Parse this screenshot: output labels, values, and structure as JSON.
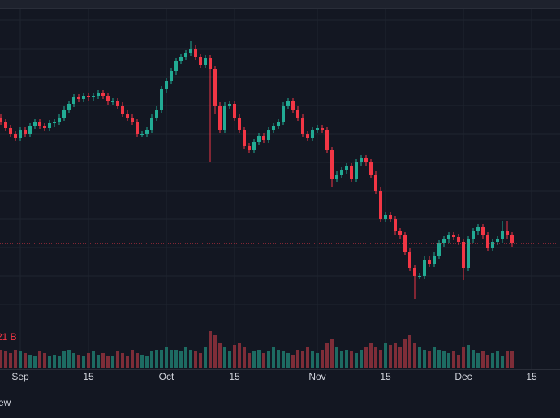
{
  "chart_data": {
    "type": "candlestick",
    "up_color": "#22ab94",
    "down_color": "#f23645",
    "volume_up_color": "#1d6b62",
    "volume_down_color": "#7e2d38",
    "price_line_color": "#f23645",
    "ylim": [
      0,
      400
    ],
    "vlim": [
      0,
      60
    ],
    "xticks": [
      {
        "value": 4,
        "label": "Sep"
      },
      {
        "value": 18,
        "label": "15"
      },
      {
        "value": 34,
        "label": "Oct"
      },
      {
        "value": 48,
        "label": "15"
      },
      {
        "value": 65,
        "label": "Nov"
      },
      {
        "value": 79,
        "label": "15"
      },
      {
        "value": 95,
        "label": "Dec"
      },
      {
        "value": 109,
        "label": "15"
      }
    ],
    "volume_label": "21 B",
    "open": [
      255,
      250,
      242,
      235,
      230,
      240,
      235,
      245,
      250,
      245,
      242,
      248,
      250,
      255,
      265,
      272,
      280,
      278,
      282,
      280,
      282,
      285,
      282,
      275,
      275,
      270,
      260,
      255,
      250,
      235,
      235,
      240,
      255,
      265,
      290,
      300,
      312,
      325,
      330,
      335,
      340,
      330,
      320,
      328,
      315,
      270,
      240,
      270,
      272,
      255,
      240,
      220,
      215,
      225,
      232,
      228,
      240,
      245,
      250,
      270,
      275,
      265,
      255,
      235,
      230,
      240,
      242,
      240,
      215,
      180,
      185,
      190,
      195,
      180,
      200,
      205,
      200,
      185,
      165,
      130,
      135,
      130,
      115,
      110,
      90,
      70,
      60,
      60,
      80,
      75,
      85,
      100,
      105,
      110,
      108,
      102,
      70,
      105,
      115,
      120,
      110,
      95,
      102,
      105,
      115,
      110
    ],
    "high": [
      259,
      254,
      246,
      239,
      244,
      244,
      249,
      254,
      254,
      249,
      252,
      254,
      259,
      269,
      276,
      284,
      284,
      286,
      286,
      286,
      289,
      289,
      286,
      279,
      279,
      274,
      264,
      259,
      254,
      239,
      244,
      259,
      269,
      294,
      304,
      316,
      329,
      334,
      339,
      350,
      344,
      334,
      332,
      332,
      319,
      274,
      274,
      276,
      276,
      259,
      244,
      224,
      229,
      236,
      236,
      244,
      249,
      254,
      274,
      279,
      279,
      269,
      259,
      239,
      244,
      246,
      246,
      244,
      219,
      189,
      194,
      199,
      199,
      204,
      209,
      209,
      204,
      189,
      169,
      139,
      139,
      134,
      119,
      114,
      94,
      74,
      64,
      84,
      84,
      89,
      104,
      109,
      114,
      114,
      112,
      106,
      109,
      119,
      124,
      124,
      114,
      106,
      109,
      128,
      128,
      114
    ],
    "low": [
      246,
      238,
      231,
      226,
      226,
      231,
      231,
      241,
      241,
      238,
      238,
      244,
      246,
      251,
      261,
      268,
      274,
      274,
      276,
      276,
      278,
      278,
      271,
      271,
      266,
      256,
      251,
      246,
      231,
      231,
      231,
      236,
      251,
      261,
      286,
      296,
      308,
      321,
      326,
      331,
      326,
      316,
      316,
      200,
      260,
      236,
      236,
      266,
      251,
      236,
      216,
      211,
      211,
      221,
      224,
      224,
      236,
      241,
      246,
      266,
      261,
      251,
      231,
      226,
      226,
      236,
      236,
      211,
      170,
      176,
      181,
      186,
      176,
      176,
      196,
      196,
      181,
      161,
      126,
      126,
      126,
      111,
      106,
      86,
      66,
      32,
      56,
      56,
      71,
      71,
      81,
      96,
      101,
      104,
      98,
      55,
      66,
      101,
      111,
      106,
      91,
      91,
      98,
      101,
      106,
      96
    ],
    "close": [
      250,
      242,
      235,
      230,
      240,
      235,
      245,
      250,
      245,
      242,
      248,
      250,
      255,
      265,
      272,
      280,
      278,
      282,
      280,
      282,
      285,
      282,
      275,
      275,
      270,
      260,
      255,
      250,
      235,
      235,
      240,
      255,
      265,
      290,
      300,
      312,
      325,
      330,
      335,
      340,
      330,
      320,
      328,
      315,
      270,
      240,
      270,
      272,
      255,
      240,
      220,
      215,
      225,
      232,
      228,
      240,
      245,
      250,
      270,
      275,
      265,
      255,
      235,
      230,
      240,
      242,
      240,
      215,
      180,
      185,
      190,
      195,
      180,
      200,
      205,
      200,
      185,
      165,
      130,
      135,
      130,
      115,
      110,
      90,
      70,
      60,
      60,
      80,
      75,
      85,
      100,
      105,
      110,
      108,
      102,
      70,
      105,
      115,
      120,
      110,
      95,
      102,
      105,
      115,
      110,
      100
    ],
    "volume": [
      22,
      20,
      18,
      22,
      20,
      18,
      16,
      15,
      20,
      18,
      14,
      16,
      15,
      20,
      22,
      18,
      16,
      14,
      18,
      20,
      16,
      18,
      14,
      15,
      20,
      18,
      15,
      22,
      18,
      16,
      14,
      20,
      22,
      22,
      25,
      22,
      22,
      20,
      25,
      22,
      20,
      18,
      25,
      45,
      40,
      30,
      25,
      20,
      28,
      30,
      25,
      18,
      20,
      22,
      18,
      20,
      25,
      22,
      20,
      18,
      16,
      22,
      20,
      25,
      20,
      18,
      22,
      30,
      35,
      25,
      20,
      22,
      20,
      18,
      22,
      25,
      30,
      25,
      22,
      30,
      28,
      30,
      25,
      35,
      40,
      30,
      25,
      22,
      20,
      25,
      22,
      20,
      18,
      20,
      16,
      25,
      28,
      22,
      18,
      20,
      16,
      18,
      20,
      15,
      20,
      20
    ]
  },
  "toolbar": {
    "label": "ew"
  }
}
